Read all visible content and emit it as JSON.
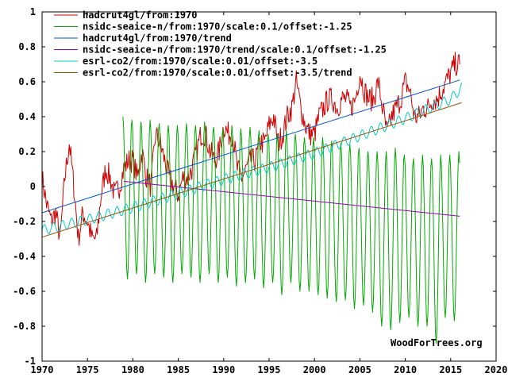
{
  "chart_data": {
    "type": "line",
    "title": "",
    "xlabel": "",
    "ylabel": "",
    "xlim": [
      1970,
      2020
    ],
    "ylim": [
      -1,
      1
    ],
    "x_ticks": [
      "1970",
      "1975",
      "1980",
      "1985",
      "1990",
      "1995",
      "2000",
      "2005",
      "2010",
      "2015",
      "2020"
    ],
    "y_ticks": [
      "1",
      "0.8",
      "0.6",
      "0.4",
      "0.2",
      "0",
      "-0.2",
      "-0.4",
      "-0.6",
      "-0.8",
      "-1"
    ],
    "grid": false,
    "legend_position": "top-left",
    "series": [
      {
        "name": "hadcrut4gl/from:1970",
        "color": "#cc0000",
        "x": [
          1970.0,
          1970.5,
          1971.0,
          1971.5,
          1972.0,
          1972.5,
          1973.0,
          1973.5,
          1974.0,
          1974.5,
          1975.0,
          1975.5,
          1976.0,
          1976.5,
          1977.0,
          1977.5,
          1978.0,
          1978.5,
          1979.0,
          1979.5,
          1980.0,
          1980.5,
          1981.0,
          1981.5,
          1982.0,
          1982.5,
          1983.0,
          1983.5,
          1984.0,
          1984.5,
          1985.0,
          1985.5,
          1986.0,
          1986.5,
          1987.0,
          1987.5,
          1988.0,
          1988.5,
          1989.0,
          1989.5,
          1990.0,
          1990.5,
          1991.0,
          1991.5,
          1992.0,
          1992.5,
          1993.0,
          1993.5,
          1994.0,
          1994.5,
          1995.0,
          1995.5,
          1996.0,
          1996.5,
          1997.0,
          1997.5,
          1998.0,
          1998.5,
          1999.0,
          1999.5,
          2000.0,
          2000.5,
          2001.0,
          2001.5,
          2002.0,
          2002.5,
          2003.0,
          2003.5,
          2004.0,
          2004.5,
          2005.0,
          2005.5,
          2006.0,
          2006.5,
          2007.0,
          2007.5,
          2008.0,
          2008.5,
          2009.0,
          2009.5,
          2010.0,
          2010.5,
          2011.0,
          2011.5,
          2012.0,
          2012.5,
          2013.0,
          2013.5,
          2014.0,
          2014.5,
          2015.0,
          2015.5,
          2016.0
        ],
        "y": [
          0.05,
          -0.1,
          -0.2,
          -0.15,
          -0.3,
          0.05,
          0.25,
          0.0,
          -0.3,
          -0.15,
          -0.2,
          -0.3,
          -0.3,
          -0.05,
          0.1,
          0.05,
          -0.05,
          0.0,
          0.1,
          0.15,
          0.15,
          0.05,
          0.2,
          0.05,
          0.0,
          0.3,
          0.25,
          0.15,
          0.05,
          0.0,
          -0.05,
          0.05,
          0.05,
          0.1,
          0.2,
          0.3,
          0.3,
          0.2,
          0.15,
          0.2,
          0.35,
          0.3,
          0.3,
          0.1,
          0.05,
          0.1,
          0.15,
          0.15,
          0.25,
          0.25,
          0.35,
          0.4,
          0.25,
          0.3,
          0.4,
          0.45,
          0.6,
          0.45,
          0.35,
          0.3,
          0.3,
          0.4,
          0.45,
          0.5,
          0.5,
          0.45,
          0.5,
          0.5,
          0.45,
          0.5,
          0.65,
          0.55,
          0.5,
          0.5,
          0.6,
          0.45,
          0.3,
          0.4,
          0.45,
          0.5,
          0.6,
          0.55,
          0.4,
          0.4,
          0.45,
          0.45,
          0.5,
          0.5,
          0.55,
          0.6,
          0.65,
          0.7,
          0.7
        ]
      },
      {
        "name": "nsidc-seaice-n/from:1970/scale:0.1/offset:-1.25",
        "color": "#00aa00",
        "x_start": 1978.9,
        "x_end": 2016.0,
        "values_summer_min": [
          -0.53,
          -0.5,
          -0.55,
          -0.5,
          -0.52,
          -0.55,
          -0.5,
          -0.52,
          -0.55,
          -0.5,
          -0.55,
          -0.52,
          -0.57,
          -0.55,
          -0.53,
          -0.58,
          -0.55,
          -0.62,
          -0.55,
          -0.6,
          -0.6,
          -0.62,
          -0.64,
          -0.66,
          -0.65,
          -0.7,
          -0.68,
          -0.72,
          -0.8,
          -0.82,
          -0.78,
          -0.75,
          -0.8,
          -0.8,
          -0.9,
          -0.75,
          -0.77,
          -0.78
        ],
        "values_winter_max": [
          0.4,
          0.38,
          0.37,
          0.38,
          0.36,
          0.35,
          0.35,
          0.36,
          0.35,
          0.37,
          0.34,
          0.33,
          0.35,
          0.33,
          0.34,
          0.32,
          0.3,
          0.3,
          0.32,
          0.3,
          0.28,
          0.28,
          0.28,
          0.26,
          0.25,
          0.24,
          0.22,
          0.2,
          0.2,
          0.2,
          0.22,
          0.18,
          0.16,
          0.18,
          0.16,
          0.18,
          0.18,
          0.2
        ]
      },
      {
        "name": "hadcrut4gl/from:1970/trend",
        "color": "#0055cc",
        "x": [
          1970.0,
          2016.0
        ],
        "y": [
          -0.15,
          0.61
        ]
      },
      {
        "name": "nsidc-seaice-n/from:1970/trend/scale:0.1/offset:-1.25",
        "color": "#9900bb",
        "x": [
          1979.0,
          2016.0
        ],
        "y": [
          0.03,
          -0.17
        ]
      },
      {
        "name": "esrl-co2/from:1970/scale:0.01/offset:-3.5",
        "color": "#00cccc",
        "x": [
          1970.0,
          1975.0,
          1980.0,
          1985.0,
          1990.0,
          1995.0,
          2000.0,
          2005.0,
          2010.0,
          2015.0,
          2016.3
        ],
        "y": [
          -0.25,
          -0.19,
          -0.12,
          -0.04,
          0.04,
          0.11,
          0.19,
          0.29,
          0.39,
          0.5,
          0.57
        ]
      },
      {
        "name": "esrl-co2/from:1970/scale:0.01/offset:-3.5/trend",
        "color": "#995500",
        "x": [
          1970.0,
          2016.2
        ],
        "y": [
          -0.29,
          0.48
        ]
      }
    ],
    "annotations": [
      "WoodForTrees.org"
    ]
  }
}
